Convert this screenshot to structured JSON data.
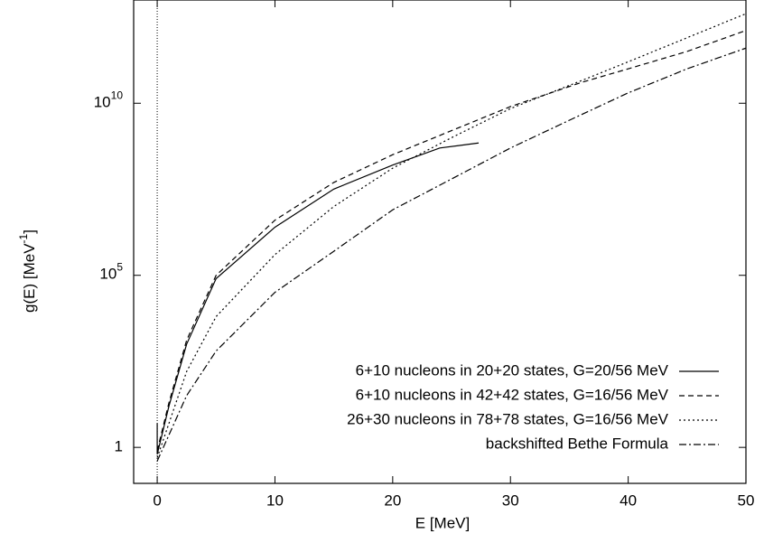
{
  "chart_data": {
    "type": "line",
    "x_label": "E [MeV]",
    "y_label": {
      "text": "g(E) [MeV",
      "sup": "-1",
      "close": "]"
    },
    "xlim": [
      -2,
      50
    ],
    "xticks": [
      0,
      10,
      20,
      30,
      40,
      50
    ],
    "ylim": [
      0.09,
      10000000000000.0
    ],
    "log_y": true,
    "yticks": [
      1,
      {
        "value": 100000,
        "label": "10",
        "exponent": "5"
      },
      {
        "value": 10000000000,
        "label": "10",
        "exponent": "10"
      }
    ],
    "legend": "lower right",
    "series": [
      {
        "name": "6+10 nucleons in 20+20 states, G=20/56 MeV",
        "color": "#000000",
        "style": "solid",
        "x": [
          0,
          0,
          1,
          2.5,
          5,
          10,
          15,
          20,
          24,
          27.3
        ],
        "values": [
          5,
          0.63,
          16,
          1000,
          80000,
          2500000,
          32000000,
          160000000,
          500000000,
          700000000
        ]
      },
      {
        "name": "6+10 nucleons in 42+42 states, G=16/56 MeV",
        "color": "#000000",
        "style": "dashed",
        "x": [
          0,
          1,
          2.5,
          5,
          10,
          15,
          20,
          25,
          30,
          36,
          40,
          45,
          50
        ],
        "values": [
          0.8,
          20,
          1300,
          100000,
          4000000,
          50000000,
          320000000,
          1600000000,
          8000000000,
          40000000000,
          100000000000,
          320000000000,
          1300000000000
        ]
      },
      {
        "name": "26+30 nucleons in 78+78 states, G=16/56 MeV",
        "color": "#000000",
        "style": "dotted",
        "x": [
          0,
          2.5,
          5,
          10,
          15,
          20,
          25,
          30,
          36,
          40,
          45,
          50
        ],
        "values": [
          0.5,
          160,
          6300,
          400000,
          10000000,
          130000000,
          1000000000,
          7000000000,
          45000000000,
          160000000000,
          800000000000,
          4000000000000
        ]
      },
      {
        "name": "backshifted Bethe Formula",
        "color": "#000000",
        "style": "dashdot",
        "x": [
          0,
          2.5,
          5,
          10,
          15,
          20,
          25,
          30,
          35,
          40,
          45,
          50
        ],
        "values": [
          0.4,
          32,
          630,
          32000,
          500000,
          8000000,
          63000000,
          500000000,
          3200000000,
          20000000000,
          100000000000,
          400000000000
        ]
      }
    ]
  }
}
